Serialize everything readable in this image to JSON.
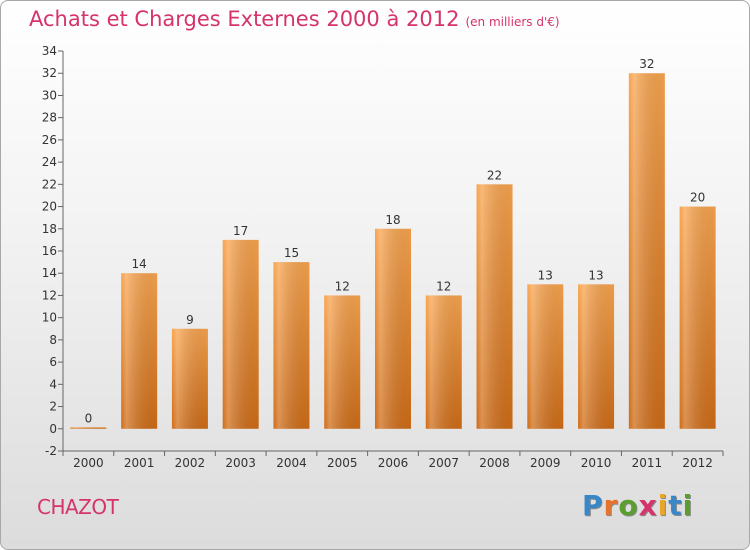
{
  "header": {
    "title": "Achats et Charges Externes 2000 à 2012",
    "subtitle": "(en milliers d'€)"
  },
  "footer": {
    "place": "CHAZOT",
    "brand": "Proxiti",
    "brand_letters": [
      "P",
      "r",
      "o",
      "x",
      "i",
      "t",
      "i"
    ],
    "brand_colors": [
      "#3a87c8",
      "#e8722c",
      "#5a9e2f",
      "#d6336c",
      "#e8a62c",
      "#3a87c8",
      "#5a9e2f"
    ]
  },
  "colors": {
    "bar_top": "#f8a44e",
    "bar_bottom": "#cf6c17",
    "axis": "#666666",
    "grid": "#cccccc"
  },
  "chart_data": {
    "type": "bar",
    "title": "Achats et Charges Externes 2000 à 2012",
    "subtitle": "(en milliers d'€)",
    "categories": [
      "2000",
      "2001",
      "2002",
      "2003",
      "2004",
      "2005",
      "2006",
      "2007",
      "2008",
      "2009",
      "2010",
      "2011",
      "2012"
    ],
    "values": [
      0,
      14,
      9,
      17,
      15,
      12,
      18,
      12,
      22,
      13,
      13,
      32,
      20
    ],
    "ylim": [
      -2,
      34
    ],
    "yticks": [
      -2,
      0,
      2,
      4,
      6,
      8,
      10,
      12,
      14,
      16,
      18,
      20,
      22,
      24,
      26,
      28,
      30,
      32,
      34
    ],
    "grid": false
  }
}
